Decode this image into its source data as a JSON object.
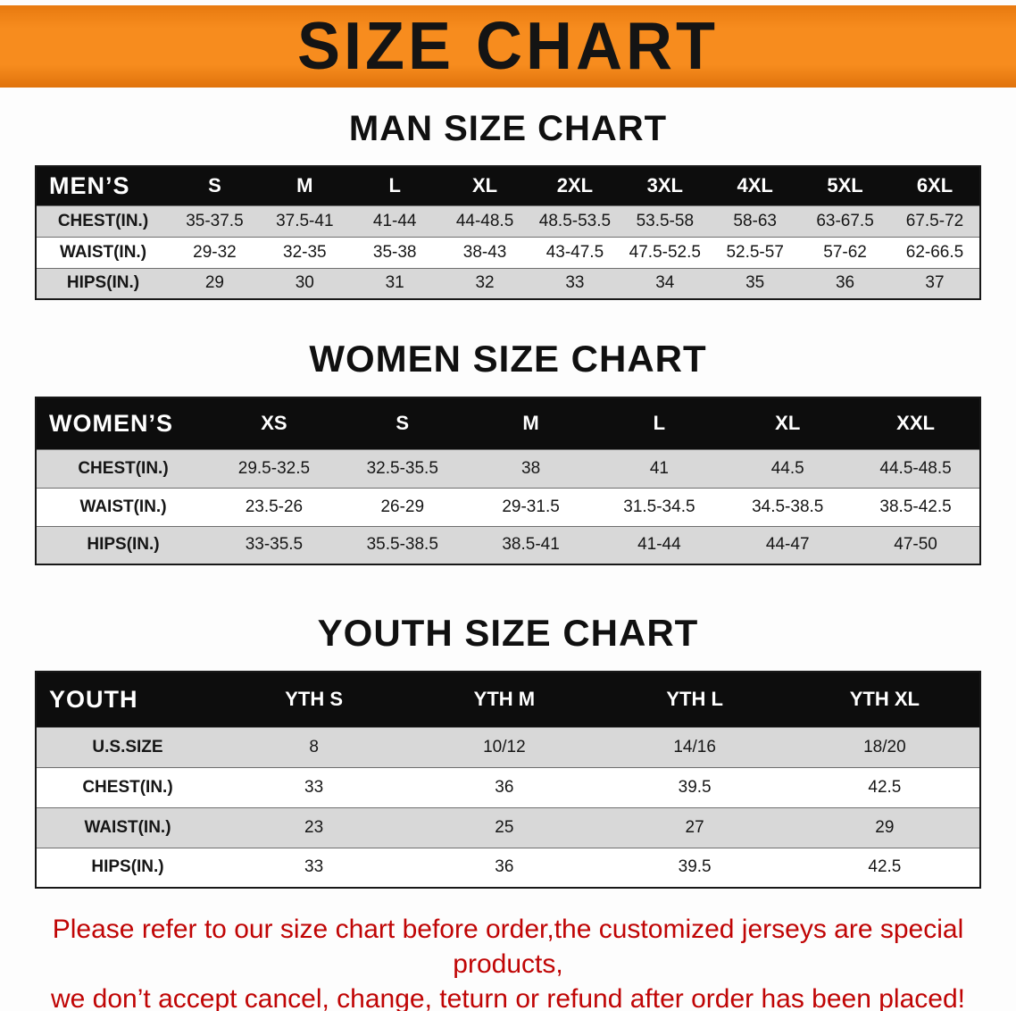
{
  "banner": {
    "title": "SIZE CHART",
    "background_color": "#f78c1e"
  },
  "sections": [
    {
      "heading": "MAN SIZE CHART",
      "table": {
        "header": [
          "MEN’S",
          "S",
          "M",
          "L",
          "XL",
          "2XL",
          "3XL",
          "4XL",
          "5XL",
          "6XL"
        ],
        "rows": [
          [
            "CHEST(IN.)",
            "35-37.5",
            "37.5-41",
            "41-44",
            "44-48.5",
            "48.5-53.5",
            "53.5-58",
            "58-63",
            "63-67.5",
            "67.5-72"
          ],
          [
            "WAIST(IN.)",
            "29-32",
            "32-35",
            "35-38",
            "38-43",
            "43-47.5",
            "47.5-52.5",
            "52.5-57",
            "57-62",
            "62-66.5"
          ],
          [
            "HIPS(IN.)",
            "29",
            "30",
            "31",
            "32",
            "33",
            "34",
            "35",
            "36",
            "37"
          ]
        ]
      }
    },
    {
      "heading": "WOMEN SIZE CHART",
      "table": {
        "header": [
          "WOMEN’S",
          "XS",
          "S",
          "M",
          "L",
          "XL",
          "XXL"
        ],
        "rows": [
          [
            "CHEST(IN.)",
            "29.5-32.5",
            "32.5-35.5",
            "38",
            "41",
            "44.5",
            "44.5-48.5"
          ],
          [
            "WAIST(IN.)",
            "23.5-26",
            "26-29",
            "29-31.5",
            "31.5-34.5",
            "34.5-38.5",
            "38.5-42.5"
          ],
          [
            "HIPS(IN.)",
            "33-35.5",
            "35.5-38.5",
            "38.5-41",
            "41-44",
            "44-47",
            "47-50"
          ]
        ]
      }
    },
    {
      "heading": "YOUTH SIZE CHART",
      "table": {
        "header": [
          "YOUTH",
          "YTH S",
          "YTH M",
          "YTH L",
          "YTH XL"
        ],
        "rows": [
          [
            "U.S.SIZE",
            "8",
            "10/12",
            "14/16",
            "18/20"
          ],
          [
            "CHEST(IN.)",
            "33",
            "36",
            "39.5",
            "42.5"
          ],
          [
            "WAIST(IN.)",
            "23",
            "25",
            "27",
            "29"
          ],
          [
            "HIPS(IN.)",
            "33",
            "36",
            "39.5",
            "42.5"
          ]
        ]
      }
    }
  ],
  "footer": {
    "lines": [
      "Please refer to our size chart before order,the customized jerseys are special products,",
      "we don’t accept cancel, change, teturn or refund after order has been placed!"
    ],
    "text_color": "#c00505"
  },
  "colors": {
    "banner_orange": "#f78c1e",
    "table_header_black": "#0d0d0d",
    "stripe_gray": "#d8d8d8",
    "footer_red": "#c00505"
  }
}
